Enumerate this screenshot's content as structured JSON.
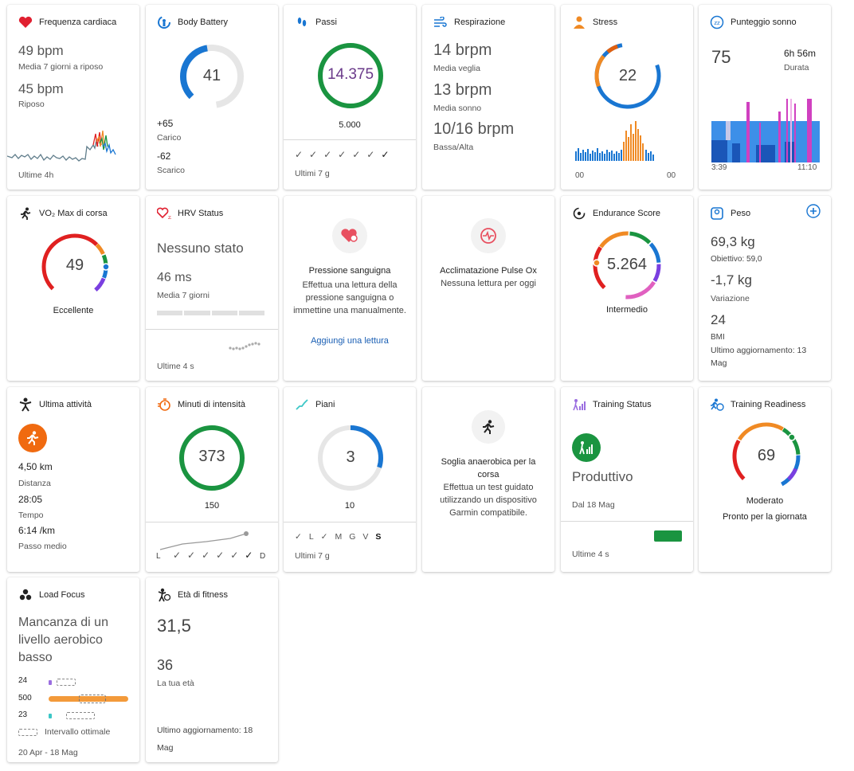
{
  "colors": {
    "accent": "#1976d2",
    "green": "#1a9440",
    "orange": "#f08a24",
    "red": "#e02020",
    "purple": "#7a3fe0",
    "pink": "#e060c0"
  },
  "heart": {
    "title": "Frequenza cardiaca",
    "v1": "49 bpm",
    "l1": "Media 7 giorni a riposo",
    "v2": "45 bpm",
    "l2": "Riposo",
    "footer": "Ultime 4h"
  },
  "battery": {
    "title": "Body Battery",
    "value": "41",
    "charge": "+65",
    "charge_label": "Carico",
    "drain": "-62",
    "drain_label": "Scarico",
    "level_fraction": 0.41
  },
  "steps": {
    "title": "Passi",
    "value": "14.375",
    "goal": "5.000",
    "footer": "Ultimi 7 g"
  },
  "resp": {
    "title": "Respirazione",
    "v1": "14 brpm",
    "l1": "Media veglia",
    "v2": "13 brpm",
    "l2": "Media sonno",
    "v3": "10/16 brpm",
    "l3": "Bassa/Alta"
  },
  "stress": {
    "title": "Stress",
    "value": "22",
    "start": "00",
    "end": "00"
  },
  "sleep": {
    "title": "Punteggio sonno",
    "score": "75",
    "duration": "6h 56m",
    "duration_label": "Durata",
    "start": "3:39",
    "end": "11:10"
  },
  "vo2": {
    "title": "VO₂ Max di corsa",
    "value": "49",
    "label": "Eccellente"
  },
  "hrv": {
    "title": "HRV Status",
    "status": "Nessuno stato",
    "value": "46 ms",
    "label": "Media 7 giorni",
    "footer": "Ultime 4 s"
  },
  "bp": {
    "title": "Pressione sanguigna",
    "desc": "Effettua una lettura della pressione sanguigna o immettine una manualmente.",
    "link": "Aggiungi una lettura"
  },
  "pulseox": {
    "title": "Acclimatazione Pulse Ox",
    "desc": "Nessuna lettura per oggi"
  },
  "endurance": {
    "title": "Endurance Score",
    "value": "5.264",
    "label": "Intermedio"
  },
  "weight": {
    "title": "Peso",
    "value": "69,3 kg",
    "goal": "Obiettivo: 59,0",
    "change": "-1,7 kg",
    "change_label": "Variazione",
    "bmi": "24",
    "bmi_label": "BMI",
    "updated": "Ultimo aggiornamento: 13 Mag"
  },
  "activity": {
    "title": "Ultima attività",
    "dist": "4,50 km",
    "dist_label": "Distanza",
    "time": "28:05",
    "time_label": "Tempo",
    "pace": "6:14 /km",
    "pace_label": "Passo medio"
  },
  "intensity": {
    "title": "Minuti di intensità",
    "value": "373",
    "goal": "150",
    "day_start": "L",
    "day_end": "D"
  },
  "floors": {
    "title": "Piani",
    "value": "3",
    "goal": "10",
    "days": [
      "L",
      "M",
      "G",
      "V",
      "S"
    ],
    "footer": "Ultimi 7 g",
    "level_fraction": 0.3
  },
  "threshold": {
    "title": "Soglia anaerobica per la corsa",
    "desc": "Effettua un test guidato utilizzando un dispositivo Garmin compatibile."
  },
  "training_status": {
    "title": "Training Status",
    "status": "Produttivo",
    "since": "Dal 18 Mag",
    "footer": "Ultime 4 s"
  },
  "readiness": {
    "title": "Training Readiness",
    "value": "69",
    "label": "Moderato",
    "desc": "Pronto per la giornata"
  },
  "load": {
    "title": "Load Focus",
    "status": "Mancanza di un livello aerobico basso",
    "rows": [
      {
        "value": "24",
        "color": "#9b6ee0"
      },
      {
        "value": "500",
        "color": "#f39a3a"
      },
      {
        "value": "23",
        "color": "#3cc7c7"
      }
    ],
    "legend": "Intervallo ottimale",
    "range": "20 Apr - 18 Mag"
  },
  "fitness_age": {
    "title": "Età di fitness",
    "value": "31,5",
    "real_age": "36",
    "real_age_label": "La tua età",
    "updated": "Ultimo aggiornamento: 18 Mag"
  }
}
